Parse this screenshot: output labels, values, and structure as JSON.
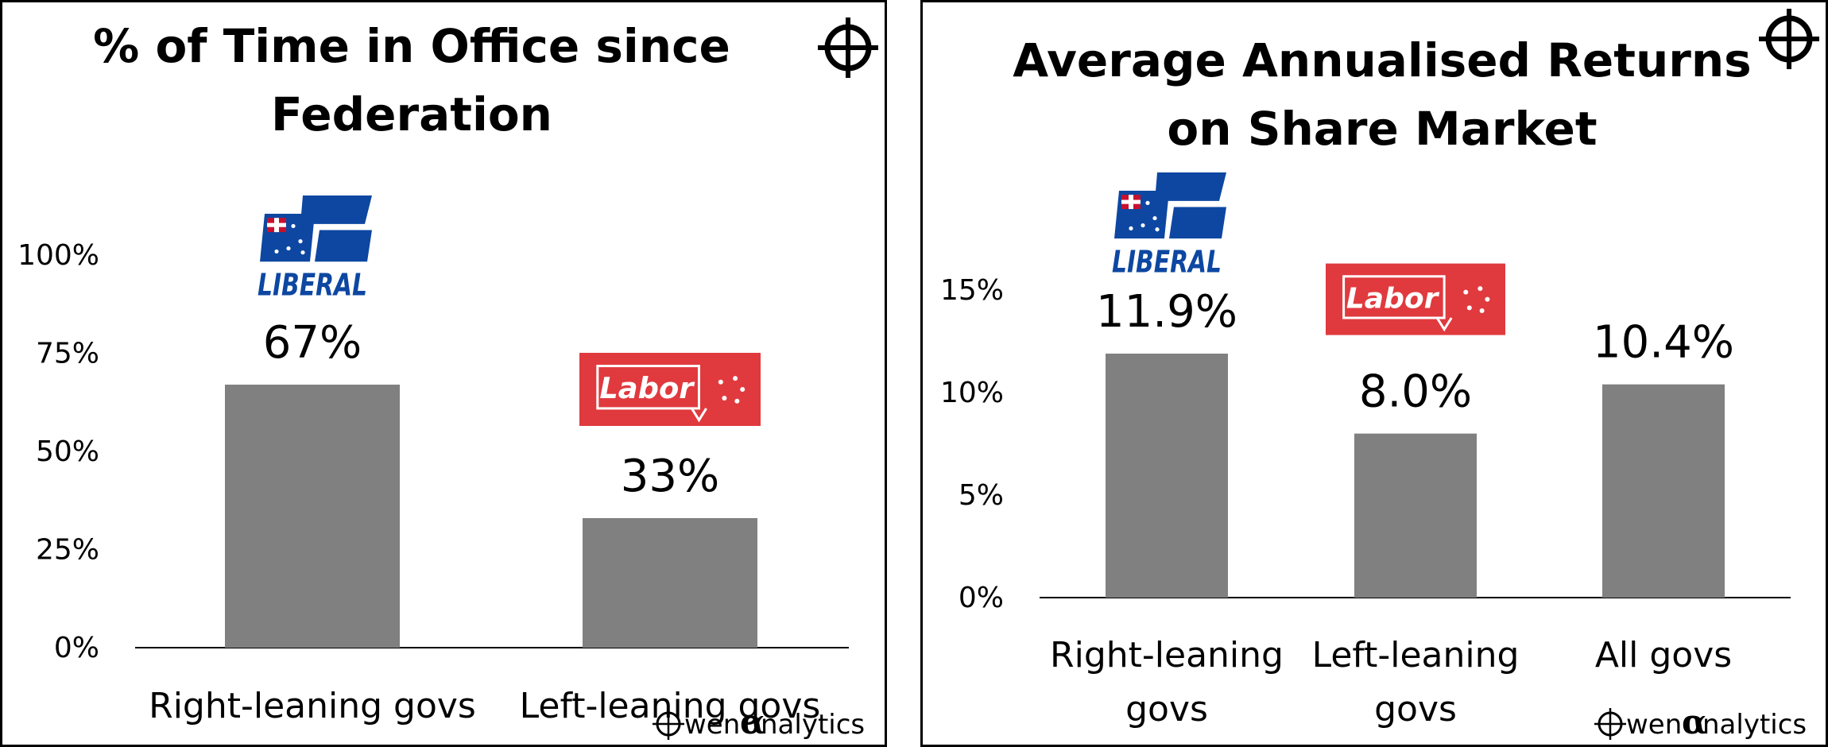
{
  "colors": {
    "bar": "#808080",
    "axis": "#000000",
    "liberal_blue": "#0d47a1",
    "labor_red": "#e03a3e"
  },
  "brand": {
    "owen": "wen",
    "alpha": "α",
    "analytics": "nalytics",
    "registered": "®",
    "crosshair_icon": "crosshair-icon"
  },
  "chart_data": [
    {
      "type": "bar",
      "title": "% of Time in Office since Federation",
      "title_lines": [
        "% of Time in Office since",
        "Federation"
      ],
      "categories": [
        "Right-leaning govs",
        "Left-leaning govs"
      ],
      "category_lines": [
        [
          "Right-leaning govs"
        ],
        [
          "Left-leaning govs"
        ]
      ],
      "values": [
        67,
        33
      ],
      "data_labels": [
        "67%",
        "33%"
      ],
      "ylim": [
        0,
        100
      ],
      "yticks": [
        0,
        25,
        50,
        75,
        100
      ],
      "ytick_labels": [
        "0%",
        "25%",
        "50%",
        "75%",
        "100%"
      ],
      "logos": [
        "LIBERAL",
        "Labor"
      ],
      "xlabel": "",
      "ylabel": "",
      "grid": false
    },
    {
      "type": "bar",
      "title": "Average Annualised Returns on Share Market",
      "title_lines": [
        "Average Annualised Returns",
        "on Share Market"
      ],
      "categories": [
        "Right-leaning govs",
        "Left-leaning govs",
        "All govs"
      ],
      "category_lines": [
        [
          "Right-leaning",
          "govs"
        ],
        [
          "Left-leaning",
          "govs"
        ],
        [
          "All govs"
        ]
      ],
      "values": [
        11.9,
        8.0,
        10.4
      ],
      "data_labels": [
        "11.9%",
        "8.0%",
        "10.4%"
      ],
      "ylim": [
        0,
        15
      ],
      "yticks": [
        0,
        5,
        10,
        15
      ],
      "ytick_labels": [
        "0%",
        "5%",
        "10%",
        "15%"
      ],
      "logos": [
        "LIBERAL",
        "Labor",
        null
      ],
      "xlabel": "",
      "ylabel": "",
      "grid": false
    }
  ]
}
